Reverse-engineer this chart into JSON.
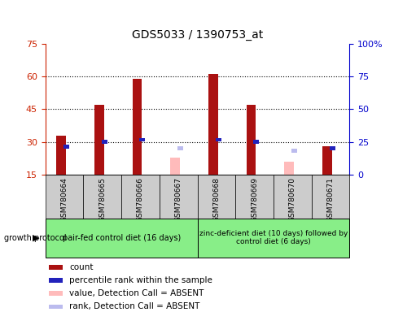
{
  "title": "GDS5033 / 1390753_at",
  "samples": [
    "GSM780664",
    "GSM780665",
    "GSM780666",
    "GSM780667",
    "GSM780668",
    "GSM780669",
    "GSM780670",
    "GSM780671"
  ],
  "count_values": [
    33,
    47,
    59,
    null,
    61,
    47,
    null,
    28
  ],
  "percentile_values": [
    28,
    30,
    31,
    null,
    31,
    30,
    null,
    27
  ],
  "absent_value_values": [
    null,
    null,
    null,
    23,
    null,
    null,
    21,
    null
  ],
  "absent_rank_values": [
    null,
    null,
    null,
    27,
    null,
    null,
    26,
    null
  ],
  "ylim_left": [
    15,
    75
  ],
  "ylim_right": [
    0,
    100
  ],
  "yticks_left": [
    15,
    30,
    45,
    60,
    75
  ],
  "yticks_right": [
    0,
    25,
    50,
    75,
    100
  ],
  "count_bar_width": 0.25,
  "pct_bar_width": 0.15,
  "group1_label": "pair-fed control diet (16 days)",
  "group2_label": "zinc-deficient diet (10 days) followed by\ncontrol diet (6 days)",
  "group1_indices": [
    0,
    1,
    2,
    3
  ],
  "group2_indices": [
    4,
    5,
    6,
    7
  ],
  "group_protocol_label": "growth protocol",
  "count_color": "#AA1111",
  "percentile_color": "#2222BB",
  "absent_value_color": "#FFBBBB",
  "absent_rank_color": "#BBBBEE",
  "sample_box_bg": "#CCCCCC",
  "protocol_bg": "#88EE88",
  "ylabel_left_color": "#CC2200",
  "ylabel_right_color": "#0000CC",
  "legend_items": [
    [
      "#AA1111",
      "count"
    ],
    [
      "#2222BB",
      "percentile rank within the sample"
    ],
    [
      "#FFBBBB",
      "value, Detection Call = ABSENT"
    ],
    [
      "#BBBBEE",
      "rank, Detection Call = ABSENT"
    ]
  ]
}
